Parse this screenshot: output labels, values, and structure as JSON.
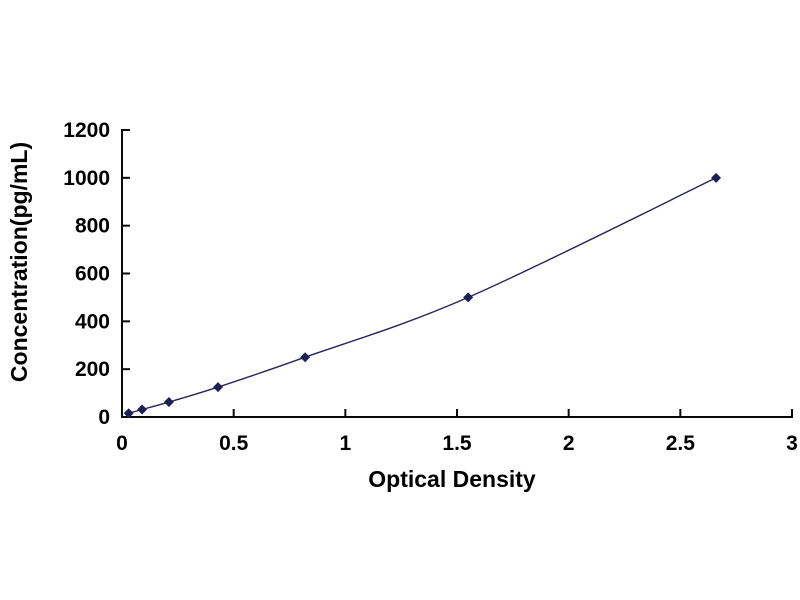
{
  "chart_data": {
    "type": "line",
    "subtype": "scatter-with-smoothed-line",
    "title": "",
    "xlabel": "Optical Density",
    "ylabel": "Concentration(pg/mL)",
    "x": [
      0.03,
      0.09,
      0.21,
      0.43,
      0.82,
      1.55,
      2.66
    ],
    "y": [
      15.6,
      31.2,
      62.5,
      125,
      250,
      500,
      1000
    ],
    "series_name": "standard-curve",
    "xlim": [
      0,
      3
    ],
    "ylim": [
      0,
      1200
    ],
    "xticks": [
      0,
      0.5,
      1,
      1.5,
      2,
      2.5,
      3
    ],
    "yticks": [
      0,
      200,
      400,
      600,
      800,
      1000,
      1200
    ],
    "xtick_labels": [
      "0",
      "0.5",
      "1",
      "1.5",
      "2",
      "2.5",
      "3"
    ],
    "ytick_labels": [
      "0",
      "200",
      "400",
      "600",
      "800",
      "1000",
      "1200"
    ],
    "grid": false,
    "legend": null,
    "marker": "diamond",
    "colors": {
      "line": "#26265c",
      "marker": "#1f1f55",
      "axis": "#0a0a0a",
      "text": "#000000",
      "background": "#ffffff"
    }
  }
}
